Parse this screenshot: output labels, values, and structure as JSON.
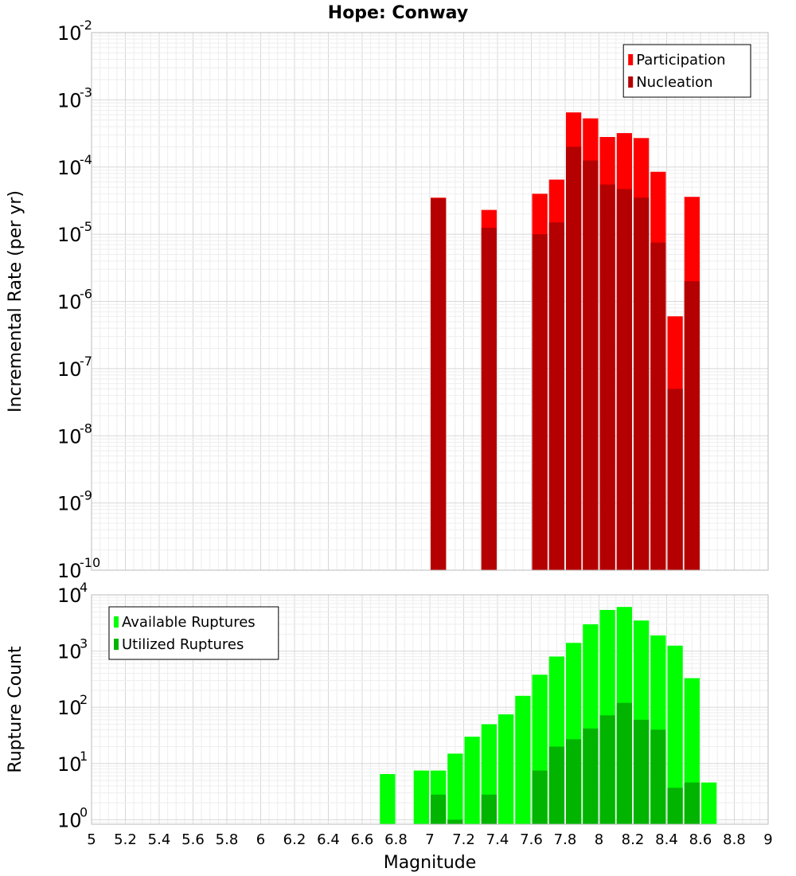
{
  "chart_data": {
    "title": "Hope: Conway",
    "xlabel": "Magnitude",
    "xlim": [
      5,
      9
    ],
    "x_ticks": [
      "5",
      "5.2",
      "5.4",
      "5.6",
      "5.8",
      "6",
      "6.2",
      "6.4",
      "6.6",
      "6.8",
      "7",
      "7.2",
      "7.4",
      "7.6",
      "7.8",
      "8",
      "8.2",
      "8.4",
      "8.6",
      "8.8",
      "9"
    ],
    "bin_width": 0.1,
    "grid": true,
    "panels": [
      {
        "type": "bar",
        "scale": "log",
        "ylabel": "Incremental Rate (per yr)",
        "ylim_exponents": [
          -10,
          -2
        ],
        "y_tick_base": "10",
        "y_tick_exponents": [
          "-10",
          "-9",
          "-8",
          "-7",
          "-6",
          "-5",
          "-4",
          "-3",
          "-2"
        ],
        "legend_position": "top-right",
        "series": [
          {
            "name": "Participation",
            "color": "#ff0000",
            "x": [
              7.05,
              7.35,
              7.65,
              7.75,
              7.85,
              7.95,
              8.05,
              8.15,
              8.25,
              8.35,
              8.45,
              8.55
            ],
            "values": [
              3.5e-05,
              2.3e-05,
              4e-05,
              6.5e-05,
              0.00065,
              0.00053,
              0.00028,
              0.00032,
              0.00027,
              8.5e-05,
              6e-07,
              3.6e-05
            ]
          },
          {
            "name": "Nucleation",
            "color": "#b40000",
            "x": [
              7.05,
              7.35,
              7.65,
              7.75,
              7.85,
              7.95,
              8.05,
              8.15,
              8.25,
              8.35,
              8.45,
              8.55
            ],
            "values": [
              3.4e-05,
              1.25e-05,
              1e-05,
              1.5e-05,
              0.0002,
              0.000125,
              5.5e-05,
              4.7e-05,
              3.5e-05,
              7.5e-06,
              5e-08,
              2e-06
            ]
          }
        ]
      },
      {
        "type": "bar",
        "scale": "log",
        "ylabel": "Rupture Count",
        "ylim_exponents": [
          -0.08,
          4
        ],
        "y_tick_base": "10",
        "y_tick_exponents": [
          "0",
          "1",
          "2",
          "3",
          "4"
        ],
        "legend_position": "top-left",
        "series": [
          {
            "name": "Available Ruptures",
            "color": "#00ff00",
            "x": [
              6.75,
              6.95,
              7.05,
              7.15,
              7.25,
              7.35,
              7.45,
              7.55,
              7.65,
              7.75,
              7.85,
              7.95,
              8.05,
              8.15,
              8.25,
              8.35,
              8.45,
              8.55,
              8.65
            ],
            "values": [
              6.5,
              7.5,
              7.5,
              15,
              30,
              50,
              75,
              160,
              380,
              800,
              1400,
              3000,
              5400,
              6100,
              3500,
              1900,
              1250,
              330,
              4.6
            ]
          },
          {
            "name": "Utilized Ruptures",
            "color": "#00b400",
            "x": [
              7.05,
              7.15,
              7.35,
              7.65,
              7.75,
              7.85,
              7.95,
              8.05,
              8.15,
              8.25,
              8.35,
              8.45,
              8.55
            ],
            "values": [
              2.8,
              1.0,
              2.8,
              7.5,
              20,
              27,
              42,
              72,
              120,
              60,
              40,
              3.7,
              4.6
            ]
          }
        ]
      }
    ]
  }
}
